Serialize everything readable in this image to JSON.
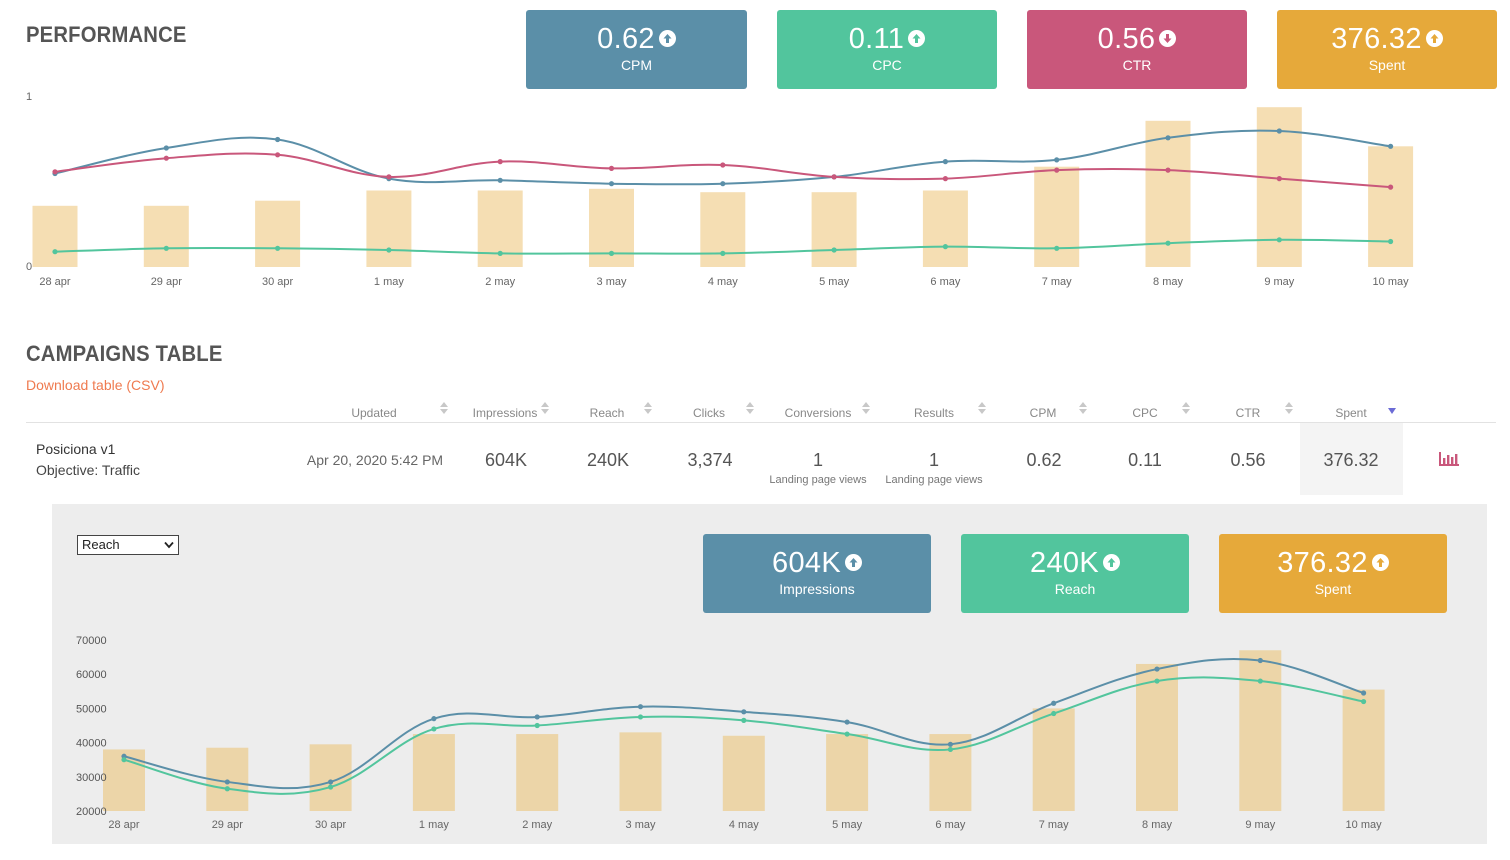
{
  "performance": {
    "title": "PERFORMANCE",
    "kpis": [
      {
        "value": "0.62",
        "label": "CPM",
        "trend": "up",
        "color": "#5b8fa8"
      },
      {
        "value": "0.11",
        "label": "CPC",
        "trend": "up",
        "color": "#52c59d"
      },
      {
        "value": "0.56",
        "label": "CTR",
        "trend": "down",
        "color": "#c9577b"
      },
      {
        "value": "376.32",
        "label": "Spent",
        "trend": "up",
        "color": "#e6a93a"
      }
    ],
    "y_top_label": "1",
    "y_bottom_label": "0"
  },
  "chart_data": [
    {
      "type": "line",
      "categories": [
        "28 apr",
        "29 apr",
        "30 apr",
        "1 may",
        "2 may",
        "3 may",
        "4 may",
        "5 may",
        "6 may",
        "7 may",
        "8 may",
        "9 may",
        "10 may"
      ],
      "ylim": [
        0,
        1
      ],
      "yticks": [
        "0",
        "1"
      ],
      "grid": false,
      "bar_series": {
        "values": [
          0.36,
          0.36,
          0.39,
          0.45,
          0.45,
          0.46,
          0.44,
          0.44,
          0.45,
          0.59,
          0.86,
          0.94,
          0.71
        ],
        "color": "#f5deb3"
      },
      "series": [
        {
          "values": [
            0.55,
            0.7,
            0.75,
            0.52,
            0.51,
            0.49,
            0.49,
            0.53,
            0.62,
            0.63,
            0.76,
            0.8,
            0.71
          ],
          "color": "#5b8fa8"
        },
        {
          "values": [
            0.56,
            0.64,
            0.66,
            0.53,
            0.62,
            0.58,
            0.6,
            0.53,
            0.52,
            0.57,
            0.57,
            0.52,
            0.47
          ],
          "color": "#c9577b"
        },
        {
          "values": [
            0.09,
            0.11,
            0.11,
            0.1,
            0.08,
            0.08,
            0.08,
            0.1,
            0.12,
            0.11,
            0.14,
            0.16,
            0.15
          ],
          "color": "#52c59d"
        }
      ]
    },
    {
      "type": "line",
      "categories": [
        "28 apr",
        "29 apr",
        "30 apr",
        "1 may",
        "2 may",
        "3 may",
        "4 may",
        "5 may",
        "6 may",
        "7 may",
        "8 may",
        "9 may",
        "10 may"
      ],
      "ylim": [
        20000,
        70000
      ],
      "yticks": [
        "20000",
        "30000",
        "40000",
        "50000",
        "60000",
        "70000"
      ],
      "grid": false,
      "bar_series": {
        "values": [
          38000,
          38500,
          39500,
          42500,
          42500,
          43000,
          42000,
          42500,
          42500,
          50000,
          63000,
          67000,
          55500
        ],
        "color": "#ecd5a8"
      },
      "series": [
        {
          "values": [
            36000,
            28500,
            28500,
            47000,
            47500,
            50500,
            49000,
            46000,
            39500,
            51500,
            61500,
            64000,
            54500
          ],
          "color": "#5b8fa8"
        },
        {
          "values": [
            35000,
            26500,
            27000,
            44000,
            45000,
            47500,
            46500,
            42500,
            38000,
            48500,
            58000,
            58000,
            52000
          ],
          "color": "#52c59d"
        }
      ]
    }
  ],
  "campaigns": {
    "title": "CAMPAIGNS TABLE",
    "download_label": "Download table (CSV)",
    "headers": [
      "Updated",
      "Impressions",
      "Reach",
      "Clicks",
      "Conversions",
      "Results",
      "CPM",
      "CPC",
      "CTR",
      "Spent"
    ],
    "row": {
      "name": "Posiciona v1",
      "objective": "Objective: Traffic",
      "updated": "Apr 20, 2020 5:42 PM",
      "impressions": "604K",
      "reach": "240K",
      "clicks": "3,374",
      "conversions": "1",
      "conversions_sub": "Landing page views",
      "results": "1",
      "results_sub": "Landing page views",
      "cpm": "0.62",
      "cpc": "0.11",
      "ctr": "0.56",
      "spent": "376.32",
      "chart_icon": "bar-chart-icon"
    }
  },
  "detail": {
    "select_value": "Reach",
    "kpis": [
      {
        "value": "604K",
        "label": "Impressions",
        "trend": "up",
        "color": "#5b8fa8"
      },
      {
        "value": "240K",
        "label": "Reach",
        "trend": "up",
        "color": "#52c59d"
      },
      {
        "value": "376.32",
        "label": "Spent",
        "trend": "up",
        "color": "#e6a93a"
      }
    ]
  }
}
